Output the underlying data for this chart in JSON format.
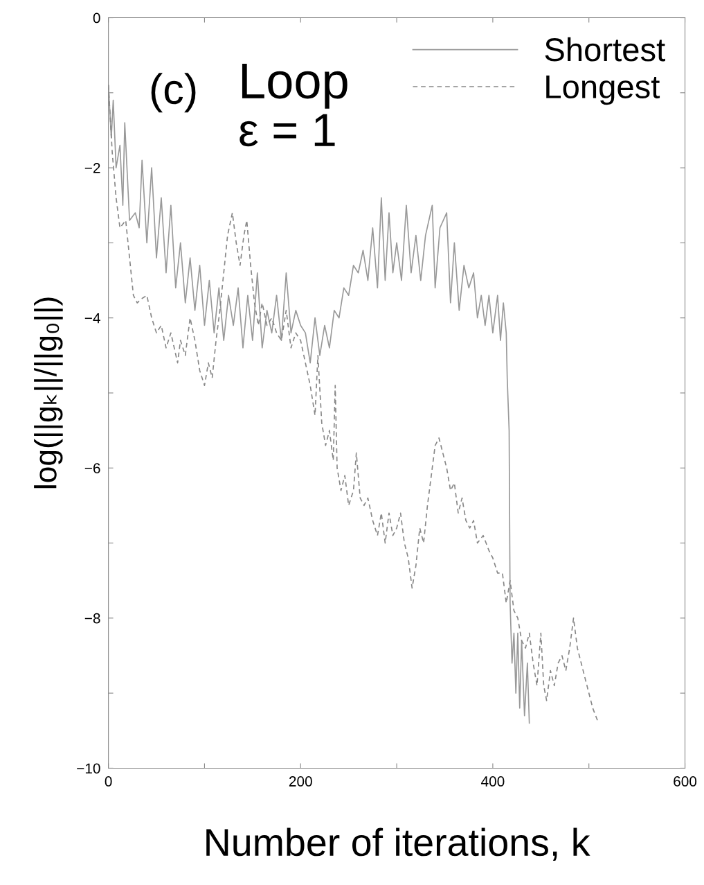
{
  "chart_data": {
    "type": "line",
    "xlabel": "Number of iterations, k",
    "ylabel": "log(||gₖ||/||g₀||)",
    "annotations": [
      "(c)",
      "Loop",
      "ε = 1"
    ],
    "xlim": [
      0,
      600
    ],
    "ylim": [
      -10,
      0
    ],
    "xticks": [
      0,
      {
        "value": 100,
        "label": null
      },
      200,
      {
        "value": 300,
        "label": null
      },
      400,
      {
        "value": 500,
        "label": null
      },
      600
    ],
    "yticks": [
      {
        "value": -10,
        "label": "−10"
      },
      {
        "value": -9,
        "label": null
      },
      {
        "value": -8,
        "label": "−8"
      },
      {
        "value": -7,
        "label": null
      },
      {
        "value": -6,
        "label": "−6"
      },
      {
        "value": -5,
        "label": null
      },
      {
        "value": -4,
        "label": "−4"
      },
      {
        "value": -3,
        "label": null
      },
      {
        "value": -2,
        "label": "−2"
      },
      {
        "value": -1,
        "label": null
      },
      0
    ],
    "grid": false,
    "legend": "top right",
    "marker": "none",
    "series": [
      {
        "name": "Shortest",
        "color": "#999999",
        "line_style": "solid",
        "x": [
          0,
          3,
          5,
          8,
          12,
          15,
          17,
          22,
          28,
          32,
          35,
          40,
          45,
          50,
          55,
          60,
          65,
          70,
          75,
          80,
          85,
          90,
          95,
          100,
          105,
          110,
          115,
          120,
          125,
          130,
          135,
          140,
          145,
          150,
          155,
          160,
          165,
          170,
          175,
          180,
          185,
          190,
          195,
          200,
          205,
          210,
          215,
          220,
          225,
          230,
          235,
          240,
          245,
          250,
          255,
          260,
          265,
          270,
          275,
          280,
          284,
          288,
          292,
          296,
          300,
          305,
          310,
          315,
          320,
          325,
          330,
          337,
          340,
          345,
          352,
          356,
          360,
          365,
          370,
          375,
          380,
          384,
          388,
          392,
          396,
          400,
          405,
          408,
          411,
          414,
          415,
          417,
          418,
          420,
          422,
          424,
          426,
          428,
          430,
          433,
          436,
          438
        ],
        "values": [
          -0.9,
          -1.6,
          -1.1,
          -2.0,
          -1.7,
          -2.5,
          -1.4,
          -2.7,
          -2.6,
          -2.8,
          -1.9,
          -3.0,
          -2.0,
          -3.2,
          -2.4,
          -3.4,
          -2.5,
          -3.6,
          -3.0,
          -3.8,
          -3.2,
          -3.9,
          -3.3,
          -4.1,
          -3.5,
          -4.2,
          -3.6,
          -4.3,
          -3.7,
          -4.1,
          -3.6,
          -4.4,
          -3.7,
          -4.3,
          -3.4,
          -4.4,
          -3.9,
          -4.2,
          -3.7,
          -4.3,
          -3.4,
          -4.2,
          -3.9,
          -4.1,
          -4.2,
          -4.6,
          -4.0,
          -4.5,
          -4.1,
          -4.4,
          -3.9,
          -4.0,
          -3.6,
          -3.7,
          -3.3,
          -3.4,
          -3.1,
          -3.5,
          -2.8,
          -3.6,
          -2.4,
          -3.5,
          -2.6,
          -3.4,
          -3.0,
          -3.5,
          -2.5,
          -3.4,
          -2.9,
          -3.5,
          -2.9,
          -2.5,
          -3.6,
          -2.8,
          -2.6,
          -3.8,
          -3.0,
          -3.9,
          -3.3,
          -3.6,
          -3.4,
          -4.0,
          -3.7,
          -4.1,
          -3.7,
          -4.2,
          -3.7,
          -4.3,
          -3.8,
          -4.2,
          -4.8,
          -5.5,
          -7.8,
          -8.6,
          -8.2,
          -9.0,
          -8.2,
          -9.2,
          -8.3,
          -9.3,
          -8.6,
          -9.4
        ]
      },
      {
        "name": "Longest",
        "color": "#888888",
        "line_style": "dashed",
        "x": [
          0,
          4,
          8,
          12,
          18,
          22,
          26,
          30,
          34,
          40,
          45,
          50,
          55,
          60,
          65,
          72,
          75,
          80,
          85,
          90,
          95,
          100,
          104,
          108,
          112,
          116,
          120,
          124,
          129,
          133,
          137,
          141,
          144,
          148,
          152,
          156,
          160,
          165,
          170,
          175,
          180,
          185,
          190,
          195,
          200,
          205,
          210,
          215,
          218,
          222,
          226,
          230,
          234,
          236,
          238,
          242,
          246,
          250,
          255,
          258,
          262,
          266,
          270,
          275,
          280,
          284,
          288,
          292,
          296,
          300,
          304,
          308,
          312,
          316,
          320,
          324,
          328,
          332,
          336,
          340,
          344,
          348,
          352,
          356,
          360,
          364,
          368,
          372,
          376,
          380,
          384,
          390,
          396,
          400,
          405,
          410,
          414,
          418,
          422,
          426,
          430,
          434,
          438,
          442,
          446,
          450,
          453,
          456,
          460,
          464,
          468,
          472,
          476,
          480,
          484,
          488,
          492,
          498,
          504,
          510
        ],
        "values": [
          -0.9,
          -1.8,
          -2.4,
          -2.8,
          -2.7,
          -3.2,
          -3.7,
          -3.8,
          -3.75,
          -3.7,
          -4.0,
          -4.2,
          -4.1,
          -4.4,
          -4.2,
          -4.6,
          -4.3,
          -4.5,
          -4.0,
          -4.3,
          -4.7,
          -4.9,
          -4.6,
          -4.8,
          -4.3,
          -3.9,
          -3.4,
          -2.9,
          -2.6,
          -3.0,
          -3.3,
          -2.9,
          -2.7,
          -3.3,
          -3.8,
          -4.1,
          -3.8,
          -4.1,
          -4.0,
          -4.2,
          -4.3,
          -3.9,
          -4.4,
          -4.2,
          -4.3,
          -4.6,
          -4.9,
          -5.3,
          -4.5,
          -5.4,
          -5.7,
          -5.5,
          -5.9,
          -4.9,
          -6.0,
          -6.3,
          -6.1,
          -6.5,
          -6.3,
          -5.8,
          -6.4,
          -6.5,
          -6.4,
          -6.7,
          -6.9,
          -6.6,
          -7.0,
          -6.6,
          -6.9,
          -6.8,
          -6.6,
          -7.0,
          -7.2,
          -7.6,
          -7.3,
          -6.8,
          -7.0,
          -6.5,
          -6.1,
          -5.7,
          -5.6,
          -5.8,
          -6.0,
          -6.3,
          -6.2,
          -6.6,
          -6.4,
          -6.7,
          -6.8,
          -6.7,
          -7.0,
          -6.9,
          -7.1,
          -7.2,
          -7.4,
          -7.4,
          -7.8,
          -7.5,
          -7.9,
          -8.0,
          -8.3,
          -8.4,
          -8.2,
          -8.6,
          -8.9,
          -8.2,
          -8.9,
          -9.1,
          -8.7,
          -8.9,
          -8.6,
          -8.5,
          -8.7,
          -8.4,
          -8.0,
          -8.4,
          -8.6,
          -8.9,
          -9.2,
          -9.4
        ]
      }
    ]
  }
}
